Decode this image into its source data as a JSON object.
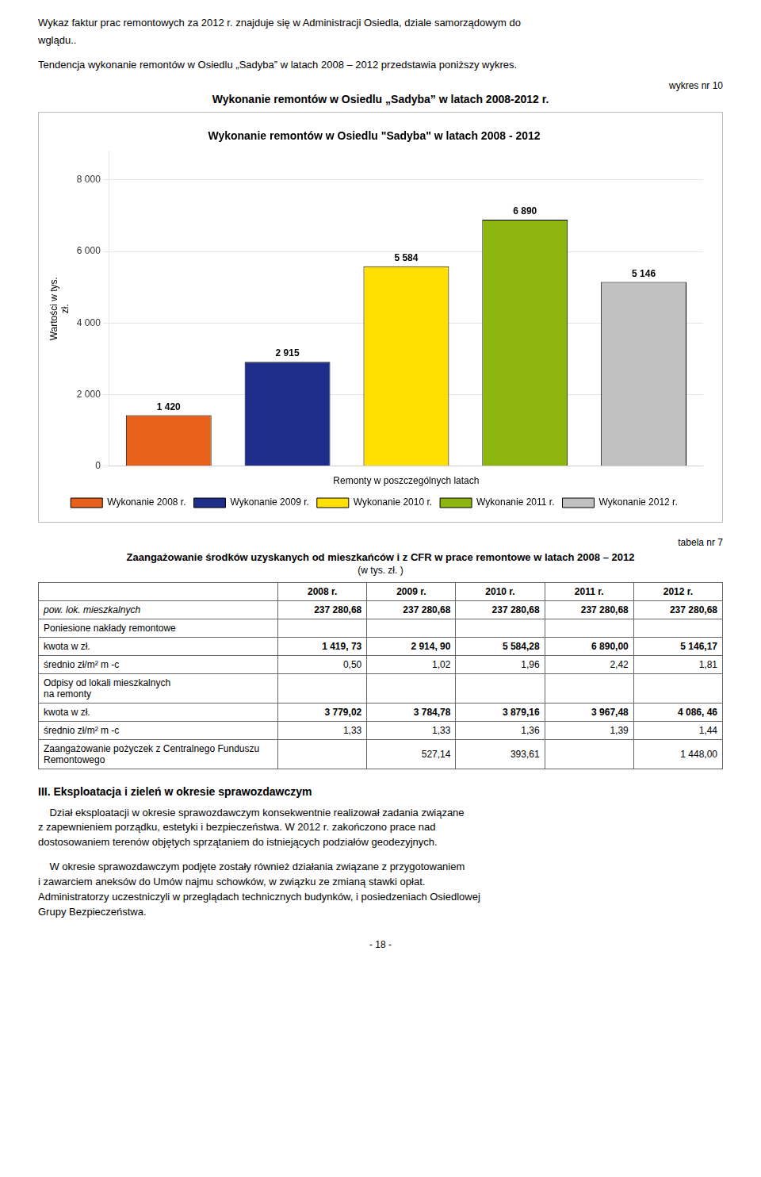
{
  "chart_data": {
    "type": "bar",
    "title": "Wykonanie remontów w Osiedlu \"Sadyba\" w latach 2008 - 2012",
    "xlabel": "Remonty w poszczególnych latach",
    "ylabel": "Wartości w tys.\nzł.",
    "categories": [
      "Wykonanie 2008 r.",
      "Wykonanie 2009 r.",
      "Wykonanie 2010 r.",
      "Wykonanie 2011 r.",
      "Wykonanie 2012 r."
    ],
    "values": [
      1420,
      2915,
      5584,
      6890,
      5146
    ],
    "value_labels": [
      "1 420",
      "2 915",
      "5 584",
      "6 890",
      "5 146"
    ],
    "data_labels": true,
    "colors": [
      "#E8611A",
      "#1F2D8A",
      "#FFE000",
      "#8DB510",
      "#C0C0C0"
    ],
    "ylim": [
      0,
      8800
    ],
    "yticks": [
      0,
      {
        "value": 2000,
        "label": "2 000"
      },
      {
        "value": 4000,
        "label": "4 000"
      },
      {
        "value": 6000,
        "label": "6 000"
      },
      {
        "value": 8000,
        "label": "8 000"
      }
    ],
    "grid": true,
    "legend": "bottom",
    "tick_labels": "y"
  },
  "page_text": [
    "Wykaz faktur prac remontowych za 2012 r. znajduje się w Administracji Osiedla, dziale samorządowym do",
    "wglądu..",
    "Tendencja wykonanie remontów w Osiedlu „Sadyba” w latach 2008 – 2012 przedstawia poniższy wykres."
  ],
  "figure_label": "wykres nr 10",
  "outer_title": "Wykonanie remontów w Osiedlu „Sadyba” w latach 2008-2012 r.",
  "table_label": "tabela nr 7",
  "table_title": "Zaangażowanie środków uzyskanych od mieszkańców i z CFR w prace remontowe w latach 2008 – 2012",
  "table_unit": "(w tys. zł. )",
  "table": {
    "headers": [
      null,
      "2008 r.",
      "2009 r.",
      "2010 r.",
      "2011 r.",
      "2012 r."
    ],
    "rows": [
      [
        "pow. lok. mieszkalnych",
        "237 280,68",
        "237 280,68",
        "237 280,68",
        "237 280,68",
        "237 280,68"
      ],
      [
        "Poniesione nakłady remontowe",
        null,
        null,
        null,
        null,
        null
      ],
      [
        "kwota w zł.",
        "1 419, 73",
        "2 914, 90",
        "5 584,28",
        "6 890,00",
        "5 146,17"
      ],
      [
        "średnio  zł/m² m -c",
        "0,50",
        "1,02",
        "1,96",
        "2,42",
        "1,81"
      ],
      [
        "Odpisy od lokali mieszkalnych\nna remonty",
        null,
        null,
        null,
        null,
        null
      ],
      [
        "kwota w zł.",
        "3 779,02",
        "3 784,78",
        "3 879,16",
        "3 967,48",
        "4 086, 46"
      ],
      [
        "średnio  zł/m² m -c",
        "1,33",
        "1,33",
        "1,36",
        "1,39",
        "1,44"
      ],
      [
        "Zaangażowanie pożyczek z Centralnego Funduszu Remontowego",
        null,
        "527,14",
        "393,61",
        null,
        "1 448,00"
      ]
    ]
  },
  "section_text": {
    "heading": "III. Eksploatacja i zieleń w okresie sprawozdawczym",
    "paragraphs": [
      [
        "    Dział eksploatacji w okresie sprawozdawczym konsekwentnie realizował zadania związane",
        "z zapewnieniem porządku, estetyki i bezpieczeństwa. W 2012 r. zakończono prace nad",
        "dostosowaniem terenów objętych sprzątaniem do istniejących podziałów geodezyjnych."
      ],
      [
        "    W okresie sprawozdawczym podjęte zostały również działania związane z przygotowaniem",
        "i zawarciem aneksów do Umów najmu schowków, w związku ze zmianą stawki opłat.",
        "Administratorzy uczestniczyli w przeglądach technicznych budynków, i posiedzeniach Osiedlowej",
        "Grupy Bezpieczeństwa."
      ]
    ]
  },
  "page_number": "- 18 -"
}
